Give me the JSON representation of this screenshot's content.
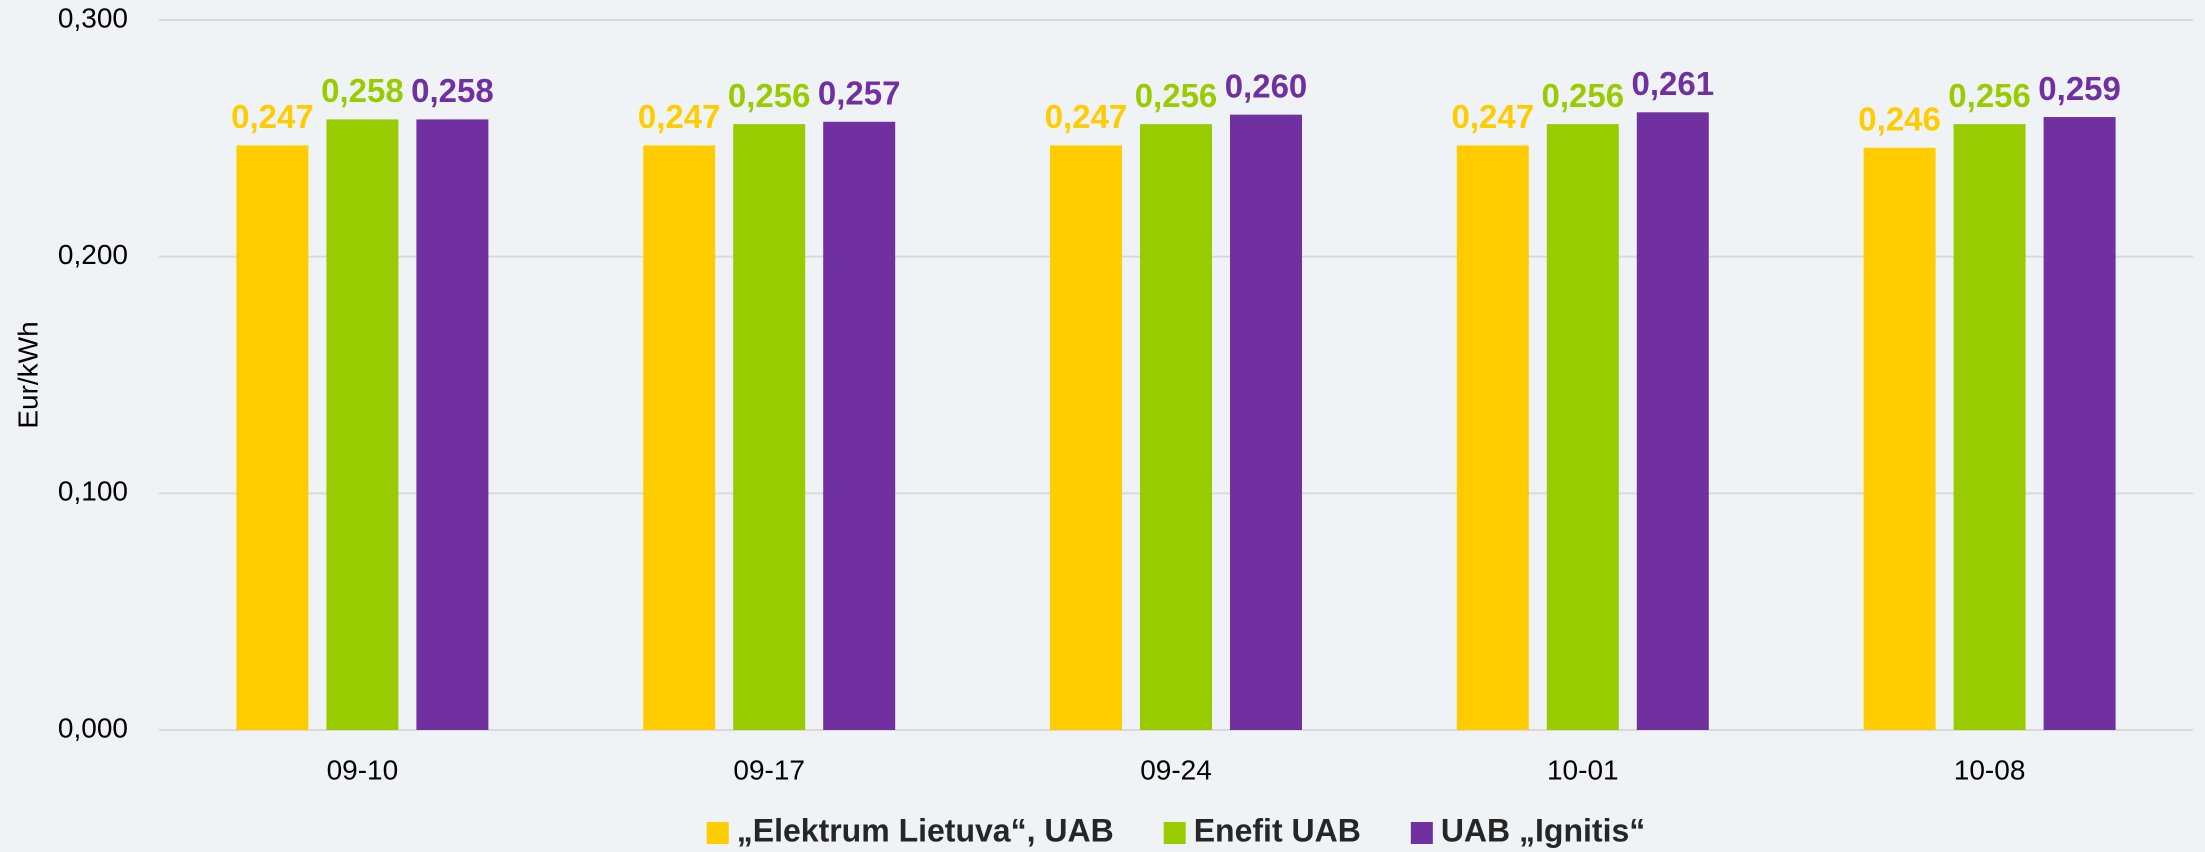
{
  "chart_data": {
    "type": "bar",
    "y_label": "Eur/kWh",
    "categories": [
      "09-10",
      "09-17",
      "09-24",
      "10-01",
      "10-08"
    ],
    "series": [
      {
        "name": "„Elektrum Lietuva“, UAB",
        "color": "#FFCC00",
        "values": [
          0.247,
          0.247,
          0.247,
          0.247,
          0.246
        ],
        "value_labels": [
          "0,247",
          "0,247",
          "0,247",
          "0,247",
          "0,246"
        ]
      },
      {
        "name": "Enefit UAB",
        "color": "#99CC00",
        "values": [
          0.258,
          0.256,
          0.256,
          0.256,
          0.256
        ],
        "value_labels": [
          "0,258",
          "0,256",
          "0,256",
          "0,256",
          "0,256"
        ]
      },
      {
        "name": "UAB „Ignitis“",
        "color": "#7030A0",
        "values": [
          0.258,
          0.257,
          0.26,
          0.261,
          0.259
        ],
        "value_labels": [
          "0,258",
          "0,257",
          "0,260",
          "0,261",
          "0,259"
        ]
      }
    ],
    "ylim": [
      0,
      0.3
    ],
    "yticks": [
      {
        "value": 0,
        "label": "0,000"
      },
      {
        "value": 0.1,
        "label": "0,100"
      },
      {
        "value": 0.2,
        "label": "0,200"
      },
      {
        "value": 0.3,
        "label": "0,300"
      }
    ],
    "grid": true,
    "legend": "bottom"
  }
}
